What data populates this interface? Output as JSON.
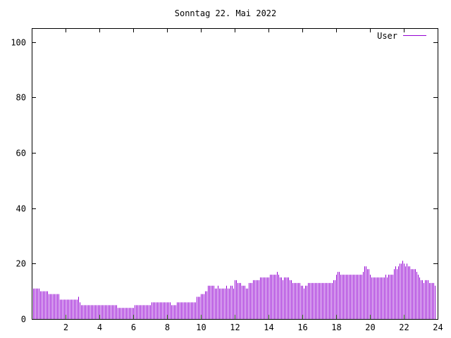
{
  "chart_data": {
    "type": "bar",
    "title": "Sonntag 22. Mai 2022",
    "xlabel": "",
    "ylabel": "",
    "xlim": [
      0,
      24
    ],
    "ylim": [
      0,
      105
    ],
    "x_ticks": [
      "2",
      "4",
      "6",
      "8",
      "10",
      "12",
      "14",
      "16",
      "18",
      "20",
      "22",
      "24"
    ],
    "y_ticks": [
      "0",
      "20",
      "40",
      "60",
      "80",
      "100"
    ],
    "grid": false,
    "legend_position": "top-right",
    "x_start_hour": 0.0833,
    "x_step_hour": 0.0833,
    "series": [
      {
        "name": "User",
        "color": "#9400d3",
        "values": [
          11,
          11,
          11,
          11,
          11,
          10,
          10,
          10,
          10,
          10,
          10,
          9,
          9,
          9,
          9,
          9,
          9,
          9,
          9,
          7,
          7,
          7,
          7,
          7,
          7,
          7,
          7,
          7,
          7,
          7,
          7,
          7,
          8,
          6,
          5,
          5,
          5,
          5,
          5,
          5,
          5,
          5,
          5,
          5,
          5,
          5,
          5,
          5,
          5,
          5,
          5,
          5,
          5,
          5,
          5,
          5,
          5,
          5,
          5,
          5,
          4,
          4,
          4,
          4,
          4,
          4,
          4,
          4,
          4,
          4,
          4,
          4,
          5,
          5,
          5,
          5,
          5,
          5,
          5,
          5,
          5,
          5,
          5,
          5,
          6,
          6,
          6,
          6,
          6,
          6,
          6,
          6,
          6,
          6,
          6,
          6,
          6,
          6,
          5,
          5,
          5,
          5,
          6,
          6,
          6,
          6,
          6,
          6,
          6,
          6,
          6,
          6,
          6,
          6,
          6,
          6,
          8,
          8,
          8,
          9,
          9,
          9,
          10,
          10,
          12,
          12,
          12,
          12,
          12,
          11,
          11,
          12,
          11,
          11,
          11,
          11,
          11,
          12,
          11,
          11,
          12,
          12,
          11,
          14,
          14,
          13,
          13,
          13,
          12,
          12,
          12,
          11,
          11,
          13,
          13,
          13,
          14,
          14,
          14,
          14,
          14,
          15,
          15,
          15,
          15,
          15,
          15,
          15,
          16,
          16,
          16,
          16,
          16,
          17,
          16,
          15,
          15,
          14,
          15,
          15,
          15,
          15,
          14,
          14,
          13,
          13,
          13,
          13,
          13,
          13,
          12,
          12,
          11,
          12,
          12,
          13,
          13,
          13,
          13,
          13,
          13,
          13,
          13,
          13,
          13,
          13,
          13,
          13,
          13,
          13,
          13,
          13,
          13,
          14,
          14,
          16,
          17,
          17,
          16,
          16,
          16,
          16,
          16,
          16,
          16,
          16,
          16,
          16,
          16,
          16,
          16,
          16,
          16,
          16,
          17,
          19,
          19,
          18,
          18,
          16,
          15,
          15,
          15,
          15,
          15,
          15,
          15,
          15,
          15,
          15,
          16,
          15,
          16,
          16,
          16,
          16,
          18,
          19,
          18,
          19,
          20,
          20,
          21,
          20,
          19,
          20,
          19,
          19,
          18,
          18,
          18,
          18,
          17,
          16,
          15,
          14,
          14,
          13,
          14,
          14,
          14,
          13,
          13,
          13,
          13,
          12
        ]
      }
    ]
  }
}
